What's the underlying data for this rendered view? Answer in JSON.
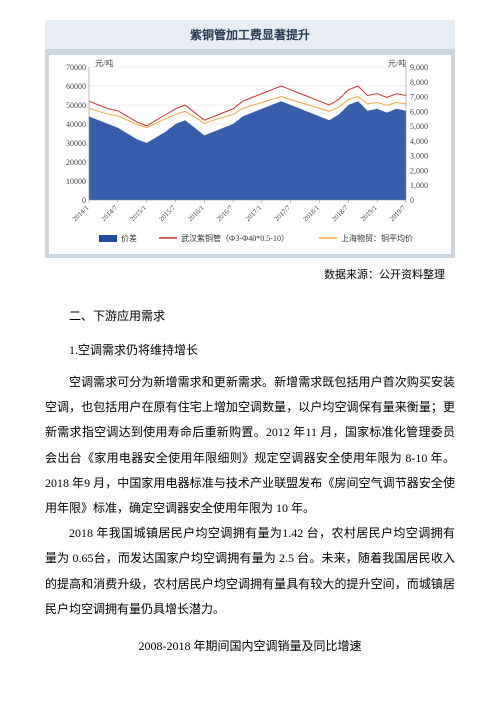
{
  "chart": {
    "title": "紫铜管加工费显著提升",
    "type": "combo-area-line",
    "left_axis": {
      "label": "元/吨",
      "min": 0,
      "max": 70000,
      "tick_step": 10000,
      "ticks": [
        "0",
        "10000",
        "20000",
        "30000",
        "40000",
        "50000",
        "60000",
        "70000"
      ],
      "label_fontsize": 8
    },
    "right_axis": {
      "label": "元/吨",
      "min": 0,
      "max": 9000,
      "tick_step": 1000,
      "ticks": [
        "0",
        "1,000",
        "2,000",
        "3,000",
        "4,000",
        "5,000",
        "6,000",
        "7,000",
        "8,000",
        "9,000"
      ],
      "label_fontsize": 8
    },
    "x_axis": {
      "ticks": [
        "2014/1",
        "2014/7",
        "2015/1",
        "2015/7",
        "2016/1",
        "2016/7",
        "2017/1",
        "2017/7",
        "2018/1",
        "2018/7",
        "2019/1",
        "2019/7"
      ],
      "rotate_deg": -45,
      "label_fontsize": 7
    },
    "series": [
      {
        "name": "价差",
        "type": "area",
        "axis": "left",
        "color": "#1f4ea3",
        "fill_opacity": 0.9,
        "points": [
          44000,
          42000,
          40000,
          38000,
          35000,
          32000,
          30000,
          33000,
          36000,
          40000,
          42000,
          38000,
          34000,
          36000,
          38000,
          40000,
          44000,
          46000,
          48000,
          50000,
          52000,
          50000,
          48000,
          46000,
          44000,
          42000,
          45000,
          50000,
          52000,
          47000,
          48000,
          46000,
          48000,
          47000
        ]
      },
      {
        "name": "武汉紫铜管（Ф3-Ф40*0.5-10）",
        "type": "line",
        "axis": "left",
        "color": "#c23531",
        "width": 1,
        "points": [
          52000,
          50000,
          48000,
          47000,
          44000,
          41000,
          39000,
          42000,
          45000,
          48000,
          50000,
          46000,
          42000,
          44000,
          46000,
          48000,
          52000,
          54000,
          56000,
          58000,
          60000,
          58000,
          56000,
          54000,
          52000,
          50000,
          53000,
          58000,
          60000,
          55000,
          56000,
          54000,
          56000,
          55000
        ]
      },
      {
        "name": "上海物贸：铜平均价",
        "type": "line",
        "axis": "right",
        "color": "#f2a93b",
        "width": 1,
        "points": [
          6200,
          6000,
          5800,
          5700,
          5400,
          5100,
          4900,
          5200,
          5500,
          5800,
          6000,
          5600,
          5200,
          5400,
          5600,
          5800,
          6200,
          6400,
          6600,
          6800,
          7000,
          6800,
          6600,
          6400,
          6200,
          6000,
          6300,
          6800,
          7000,
          6500,
          6600,
          6400,
          6600,
          6500
        ]
      }
    ],
    "legend": {
      "items": [
        "价差",
        "武汉紫铜管（Ф3-Ф40*0.5-10）",
        "上海物贸：铜平均价"
      ],
      "fontsize": 8
    },
    "background": "#ccd5e0",
    "plot_background": "#ffffff",
    "grid_color": "#dcdcdc"
  },
  "source_line": "数据来源：公开资料整理",
  "section_head": "二、下游应用需求",
  "sub_head": "1.空调需求仍将维持增长",
  "para1": "空调需求可分为新增需求和更新需求。新增需求既包括用户首次购买安装空调，也包括用户在原有住宅上增加空调数量，以户均空调保有量来衡量；更新需求指空调达到使用寿命后重新购置。2012 年11 月，国家标准化管理委员会出台《家用电器安全使用年限细则》规定空调器安全使用年限为 8-10 年。2018 年9 月，中国家用电器标准与技术产业联盟发布《房间空气调节器安全使用年限》标准，确定空调器安全使用年限为 10 年。",
  "para2": "2018 年我国城镇居民户均空调拥有量为1.42 台，农村居民户均空调拥有量为 0.65台，而发达国家户均空调拥有量为 2.5 台。未来，随着我国居民收入的提高和消费升级，农村居民户均空调拥有量具有较大的提升空间，而城镇居民户均空调拥有量仍具增长潜力。",
  "caption": "2008-2018 年期间国内空调销量及同比增速"
}
